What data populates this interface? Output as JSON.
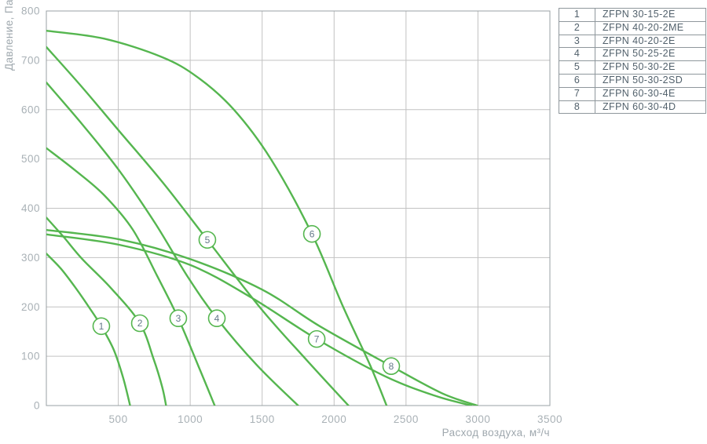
{
  "colors": {
    "curve_green": "#55b64f",
    "grid": "#c2c2c2",
    "axis_border": "#9aa0a4",
    "tick_text": "#a9b1b6",
    "axis_title_text": "#9fa8ae",
    "curve_label_text": "#64798a",
    "legend_text": "#52616c",
    "legend_border": "#8f979c",
    "background": "#ffffff"
  },
  "chart_data": {
    "type": "line",
    "title": "",
    "xlabel": "Расход воздуха, м³/ч",
    "ylabel": "Давление, Па",
    "xlim": [
      0,
      3500
    ],
    "ylim": [
      0,
      800
    ],
    "x_ticks": [
      500,
      1000,
      1500,
      2000,
      2500,
      3000,
      3500
    ],
    "y_ticks": [
      0,
      100,
      200,
      300,
      400,
      500,
      600,
      700,
      800
    ],
    "grid": true,
    "legend_position": "outside-top-right",
    "series": [
      {
        "id": "1",
        "name": "ZFPN 30-15-2E",
        "label_at": [
          382,
          161
        ],
        "points": [
          [
            0,
            308
          ],
          [
            100,
            278
          ],
          [
            200,
            240
          ],
          [
            300,
            198
          ],
          [
            382,
            161
          ],
          [
            470,
            112
          ],
          [
            535,
            55
          ],
          [
            582,
            0
          ]
        ]
      },
      {
        "id": "2",
        "name": "ZFPN 40-20-2ME",
        "label_at": [
          650,
          167
        ],
        "points": [
          [
            0,
            381
          ],
          [
            120,
            342
          ],
          [
            250,
            297
          ],
          [
            450,
            238
          ],
          [
            650,
            167
          ],
          [
            745,
            95
          ],
          [
            805,
            38
          ],
          [
            832,
            0
          ]
        ]
      },
      {
        "id": "3",
        "name": "ZFPN 40-20-2E",
        "label_at": [
          917,
          177
        ],
        "points": [
          [
            0,
            522
          ],
          [
            200,
            477
          ],
          [
            400,
            427
          ],
          [
            600,
            357
          ],
          [
            770,
            263
          ],
          [
            917,
            177
          ],
          [
            1060,
            78
          ],
          [
            1170,
            0
          ]
        ]
      },
      {
        "id": "4",
        "name": "ZFPN 50-25-2E",
        "label_at": [
          1185,
          177
        ],
        "points": [
          [
            0,
            655
          ],
          [
            250,
            570
          ],
          [
            505,
            477
          ],
          [
            760,
            368
          ],
          [
            985,
            260
          ],
          [
            1185,
            177
          ],
          [
            1460,
            83
          ],
          [
            1750,
            0
          ]
        ]
      },
      {
        "id": "5",
        "name": "ZFPN 50-30-2E",
        "label_at": [
          1119,
          336
        ],
        "points": [
          [
            0,
            727
          ],
          [
            250,
            645
          ],
          [
            505,
            557
          ],
          [
            810,
            452
          ],
          [
            1119,
            336
          ],
          [
            1490,
            197
          ],
          [
            1810,
            92
          ],
          [
            2100,
            0
          ]
        ]
      },
      {
        "id": "6",
        "name": "ZFPN 50-30-2SD",
        "label_at": [
          1846,
          348
        ],
        "points": [
          [
            0,
            760
          ],
          [
            400,
            744
          ],
          [
            800,
            707
          ],
          [
            1050,
            666
          ],
          [
            1300,
            601
          ],
          [
            1560,
            500
          ],
          [
            1846,
            348
          ],
          [
            2060,
            202
          ],
          [
            2250,
            82
          ],
          [
            2365,
            0
          ]
        ]
      },
      {
        "id": "7",
        "name": "ZFPN 60-30-4E",
        "label_at": [
          1879,
          135
        ],
        "points": [
          [
            0,
            347
          ],
          [
            505,
            326
          ],
          [
            1000,
            285
          ],
          [
            1430,
            218
          ],
          [
            1879,
            135
          ],
          [
            2350,
            60
          ],
          [
            2700,
            20
          ],
          [
            2955,
            0
          ]
        ]
      },
      {
        "id": "8",
        "name": "ZFPN 60-30-4D",
        "label_at": [
          2397,
          80
        ],
        "points": [
          [
            0,
            356
          ],
          [
            505,
            337
          ],
          [
            1000,
            297
          ],
          [
            1500,
            235
          ],
          [
            1900,
            161
          ],
          [
            2397,
            80
          ],
          [
            2750,
            25
          ],
          [
            2995,
            0
          ]
        ]
      }
    ]
  },
  "legend": {
    "rows": [
      {
        "num": "1",
        "model": "ZFPN 30-15-2E"
      },
      {
        "num": "2",
        "model": "ZFPN 40-20-2ME"
      },
      {
        "num": "3",
        "model": "ZFPN 40-20-2E"
      },
      {
        "num": "4",
        "model": "ZFPN 50-25-2E"
      },
      {
        "num": "5",
        "model": "ZFPN 50-30-2E"
      },
      {
        "num": "6",
        "model": "ZFPN 50-30-2SD"
      },
      {
        "num": "7",
        "model": "ZFPN 60-30-4E"
      },
      {
        "num": "8",
        "model": "ZFPN 60-30-4D"
      }
    ]
  }
}
